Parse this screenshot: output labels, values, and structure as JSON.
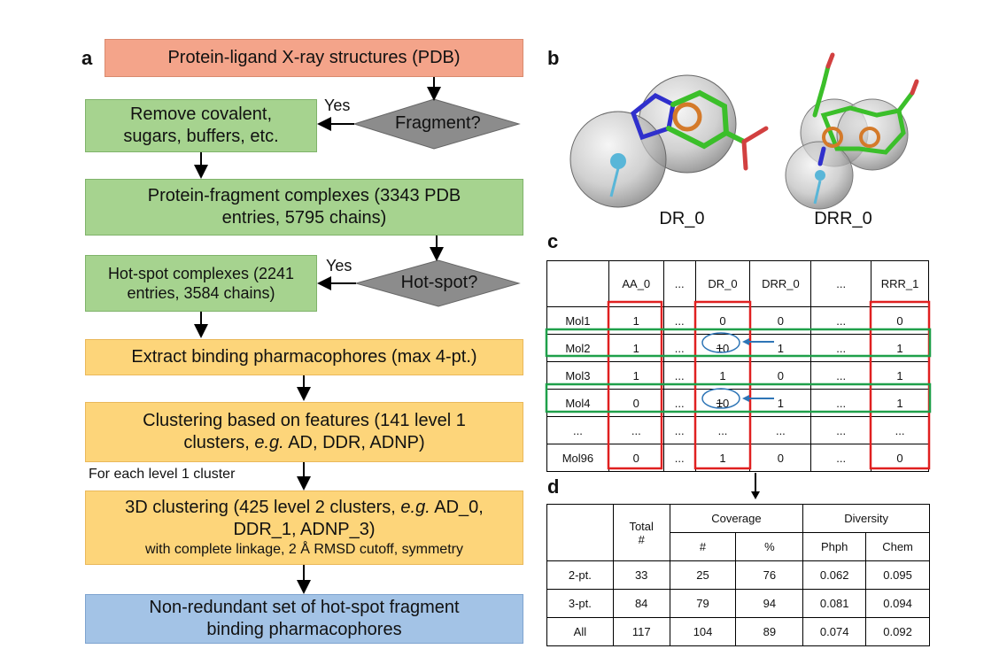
{
  "panels": {
    "a": "a",
    "b": "b",
    "c": "c",
    "d": "d"
  },
  "flow": {
    "pdb": "Protein-ligand X-ray structures (PDB)",
    "fragment_q": "Fragment?",
    "yes1": "Yes",
    "remove_l1": "Remove covalent,",
    "remove_l2": "sugars, buffers, etc.",
    "complexes_l1": "Protein-fragment complexes (3343 PDB",
    "complexes_l2": "entries, 5795 chains)",
    "hotspot_q": "Hot-spot?",
    "yes2": "Yes",
    "hotspot_l1": "Hot-spot complexes (2241",
    "hotspot_l2": "entries, 3584 chains)",
    "extract": "Extract binding pharmacophores (max 4-pt.)",
    "cluster_l1": "Clustering based on features (141 level 1",
    "cluster_l2_a": "clusters, ",
    "cluster_l2_eg": "e.g.",
    "cluster_l2_b": " AD, DDR, ADNP)",
    "for_each": "For each level 1 cluster",
    "clust3d_l1_a": "3D clustering (425 level 2 clusters, ",
    "clust3d_l1_eg": "e.g.",
    "clust3d_l1_b": " AD_0,",
    "clust3d_l2": "DDR_1, ADNP_3)",
    "clust3d_l3": "with complete linkage, 2 Å RMSD cutoff, symmetry",
    "final_l1": "Non-redundant set of hot-spot fragment",
    "final_l2": "binding pharmacophores"
  },
  "molecules": {
    "left_label": "DR_0",
    "right_label": "DRR_0"
  },
  "table_c": {
    "headers": [
      "",
      "AA_0",
      "...",
      "DR_0",
      "DRR_0",
      "...",
      "RRR_1"
    ],
    "rows": [
      [
        "Mol1",
        "1",
        "...",
        "0",
        "0",
        "...",
        "0"
      ],
      [
        "Mol2",
        "1",
        "...",
        "10",
        "1",
        "...",
        "1"
      ],
      [
        "Mol3",
        "1",
        "...",
        "1",
        "0",
        "...",
        "1"
      ],
      [
        "Mol4",
        "0",
        "...",
        "10",
        "1",
        "...",
        "1"
      ],
      [
        "...",
        "...",
        "...",
        "...",
        "...",
        "...",
        "..."
      ],
      [
        "Mol96",
        "0",
        "...",
        "1",
        "0",
        "...",
        "0"
      ]
    ],
    "edit_struck": "1",
    "edit_new": "0"
  },
  "table_d": {
    "total_label": "Total",
    "total_sub": "#",
    "coverage": "Coverage",
    "diversity": "Diversity",
    "cov_cols": [
      "#",
      "%"
    ],
    "div_cols": [
      "Phph",
      "Chem"
    ],
    "rows": [
      [
        "2-pt.",
        "33",
        "25",
        "76",
        "0.062",
        "0.095"
      ],
      [
        "3-pt.",
        "84",
        "79",
        "94",
        "0.081",
        "0.094"
      ],
      [
        "All",
        "117",
        "104",
        "89",
        "0.074",
        "0.092"
      ]
    ]
  },
  "colors": {
    "salmon": "#f4a48a",
    "green": "#a6d38f",
    "yellow": "#fdd57a",
    "blue": "#a3c3e6",
    "diamond": "#8c8c8c",
    "red_outline": "#e02020",
    "green_outline": "#1fa04a",
    "arrow_blue": "#2e75b6"
  }
}
